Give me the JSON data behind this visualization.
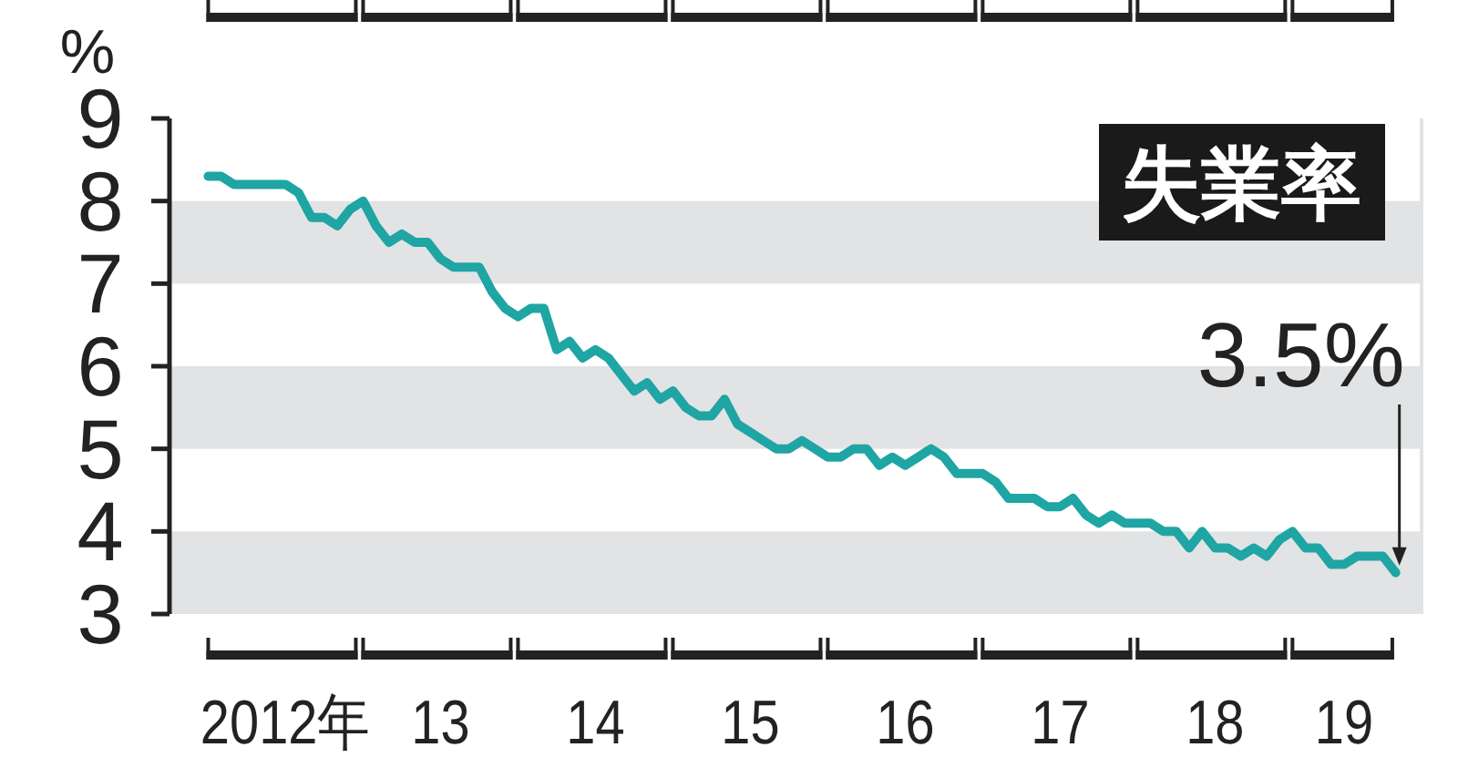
{
  "chart_data": {
    "type": "line",
    "title": "失業率",
    "ylabel": "%",
    "x": [
      "2012-01",
      "2012-02",
      "2012-03",
      "2012-04",
      "2012-05",
      "2012-06",
      "2012-07",
      "2012-08",
      "2012-09",
      "2012-10",
      "2012-11",
      "2012-12",
      "2013-01",
      "2013-02",
      "2013-03",
      "2013-04",
      "2013-05",
      "2013-06",
      "2013-07",
      "2013-08",
      "2013-09",
      "2013-10",
      "2013-11",
      "2013-12",
      "2014-01",
      "2014-02",
      "2014-03",
      "2014-04",
      "2014-05",
      "2014-06",
      "2014-07",
      "2014-08",
      "2014-09",
      "2014-10",
      "2014-11",
      "2014-12",
      "2015-01",
      "2015-02",
      "2015-03",
      "2015-04",
      "2015-05",
      "2015-06",
      "2015-07",
      "2015-08",
      "2015-09",
      "2015-10",
      "2015-11",
      "2015-12",
      "2016-01",
      "2016-02",
      "2016-03",
      "2016-04",
      "2016-05",
      "2016-06",
      "2016-07",
      "2016-08",
      "2016-09",
      "2016-10",
      "2016-11",
      "2016-12",
      "2017-01",
      "2017-02",
      "2017-03",
      "2017-04",
      "2017-05",
      "2017-06",
      "2017-07",
      "2017-08",
      "2017-09",
      "2017-10",
      "2017-11",
      "2017-12",
      "2018-01",
      "2018-02",
      "2018-03",
      "2018-04",
      "2018-05",
      "2018-06",
      "2018-07",
      "2018-08",
      "2018-09",
      "2018-10",
      "2018-11",
      "2018-12",
      "2019-01",
      "2019-02",
      "2019-03",
      "2019-04",
      "2019-05",
      "2019-06",
      "2019-07",
      "2019-08",
      "2019-09"
    ],
    "series": [
      {
        "color": "#1fa5a3",
        "values": [
          8.3,
          8.3,
          8.2,
          8.2,
          8.2,
          8.2,
          8.2,
          8.1,
          7.8,
          7.8,
          7.7,
          7.9,
          8.0,
          7.7,
          7.5,
          7.6,
          7.5,
          7.5,
          7.3,
          7.2,
          7.2,
          7.2,
          6.9,
          6.7,
          6.6,
          6.7,
          6.7,
          6.2,
          6.3,
          6.1,
          6.2,
          6.1,
          5.9,
          5.7,
          5.8,
          5.6,
          5.7,
          5.5,
          5.4,
          5.4,
          5.6,
          5.3,
          5.2,
          5.1,
          5.0,
          5.0,
          5.1,
          5.0,
          4.9,
          4.9,
          5.0,
          5.0,
          4.8,
          4.9,
          4.8,
          4.9,
          5.0,
          4.9,
          4.7,
          4.7,
          4.7,
          4.6,
          4.4,
          4.4,
          4.4,
          4.3,
          4.3,
          4.4,
          4.2,
          4.1,
          4.2,
          4.1,
          4.1,
          4.1,
          4.0,
          4.0,
          3.8,
          4.0,
          3.8,
          3.8,
          3.7,
          3.8,
          3.7,
          3.9,
          4.0,
          3.8,
          3.8,
          3.6,
          3.6,
          3.7,
          3.7,
          3.7,
          3.5
        ]
      }
    ],
    "xlim": [
      "2011-10",
      "2019-11"
    ],
    "xticks": [
      {
        "value": "2012-07",
        "label": "2012年"
      },
      {
        "value": "2013-07",
        "label": "13"
      },
      {
        "value": "2014-07",
        "label": "14"
      },
      {
        "value": "2015-07",
        "label": "15"
      },
      {
        "value": "2016-07",
        "label": "16"
      },
      {
        "value": "2017-07",
        "label": "17"
      },
      {
        "value": "2018-07",
        "label": "18"
      },
      {
        "value": "2019-05",
        "label": "19"
      }
    ],
    "ylim": [
      3,
      9
    ],
    "yticks": [
      3,
      4,
      5,
      6,
      7,
      8,
      9
    ],
    "bands": [
      {
        "axis": "y",
        "from": 3,
        "to": 4,
        "color": "#e2e3e5"
      },
      {
        "axis": "y",
        "from": 5,
        "to": 6,
        "color": "#e2e3e5"
      },
      {
        "axis": "y",
        "from": 7,
        "to": 8,
        "color": "#e2e3e5"
      }
    ],
    "annotations": [
      {
        "text": "3.5%",
        "x": "2019-09",
        "y": 3.5
      }
    ],
    "grid": false,
    "marker": "none",
    "line_style": "solid"
  }
}
